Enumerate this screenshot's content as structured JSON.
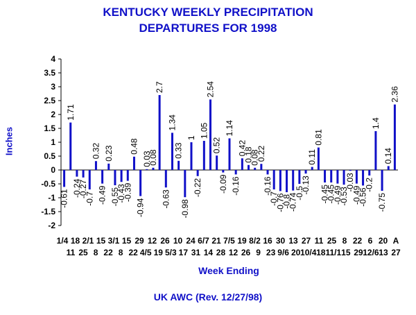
{
  "title_line1": "KENTUCKY WEEKLY PRECIPITATION",
  "title_line2": "DEPARTURES FOR 1998",
  "footer": "UK AWC (Rev. 12/27/98)",
  "colors": {
    "title": "#1010c8",
    "bar": "#1010c8",
    "axis": "#000000",
    "text": "#000000"
  },
  "chart_data": {
    "type": "bar",
    "title": "KENTUCKY WEEKLY PRECIPITATION DEPARTURES FOR 1998",
    "xlabel": "Week Ending",
    "ylabel": "Inches",
    "ylim": [
      -2,
      4
    ],
    "yticks": [
      -2,
      -1.5,
      -1,
      -0.5,
      0,
      0.5,
      1,
      1.5,
      2,
      2.5,
      3,
      3.5,
      4
    ],
    "ytick_labels": [
      "-2",
      "-1.5",
      "-1",
      "-0.5",
      "0",
      "0.5",
      "1",
      "1.5",
      "2",
      "2.5",
      "3",
      "3.5",
      "4"
    ],
    "grid": false,
    "legend": "none",
    "xtick_row1": [
      "1/4",
      "18",
      "2/1",
      "15",
      "3/1",
      "15",
      "29",
      "12",
      "26",
      "10",
      "24",
      "6/7",
      "21",
      "7/5",
      "19",
      "8/2",
      "16",
      "30",
      "13",
      "27",
      "11",
      "25",
      "8",
      "22",
      "6",
      "20",
      "A"
    ],
    "xtick_row2": [
      "11",
      "25",
      "8",
      "22",
      "8",
      "22",
      "4/5",
      "19",
      "5/3",
      "17",
      "31",
      "14",
      "28",
      "12",
      "26",
      "9",
      "23",
      "9/6",
      "20",
      "10/4",
      "18",
      "11/1",
      "15",
      "29",
      "12/6",
      "13",
      "27"
    ],
    "values": [
      -0.61,
      1.71,
      -0.24,
      -0.27,
      -0.7,
      0.32,
      -0.49,
      0.23,
      -0.55,
      -0.43,
      -0.39,
      0.48,
      -0.94,
      0.03,
      0.08,
      2.7,
      -0.63,
      1.34,
      0.33,
      -0.98,
      1,
      -0.22,
      1.05,
      2.54,
      0.52,
      -0.09,
      1.14,
      -0.16,
      0.42,
      0.18,
      0.08,
      0.22,
      -0.16,
      -0.7,
      -0.76,
      -0.8,
      -0.74,
      -0.5,
      -0.13,
      0.11,
      0.81,
      -0.45,
      -0.45,
      -0.49,
      -0.53,
      -0.03,
      -0.49,
      -0.56,
      -0.2,
      1.4,
      -0.75,
      0.14,
      2.36
    ],
    "data_labels": [
      "-0.61",
      "1.71",
      "-0.24",
      "-0.27",
      "-0.7",
      "0.32",
      "-0.49",
      "0.23",
      "-0.55",
      "-0.43",
      "-0.39",
      "0.48",
      "-0.94",
      "0.03",
      "0.08",
      "2.7",
      "-0.63",
      "1.34",
      "0.33",
      "-0.98",
      "1",
      "-0.22",
      "1.05",
      "2.54",
      "0.52",
      "-0.09",
      "1.14",
      "-0.16",
      "0.42",
      "0.18",
      "0.08",
      "0.22",
      "-0.16",
      "-0.7",
      "-0.76",
      "-0.8",
      "-0.74",
      "-0.5",
      "-0.13",
      "0.11",
      "0.81",
      "-0.45",
      "-0.45",
      "-0.49",
      "-0.53",
      "-0.03",
      "-0.49",
      "-0.56",
      "-0.2",
      "1.4",
      "-0.75",
      "0.14",
      "2.36"
    ]
  }
}
